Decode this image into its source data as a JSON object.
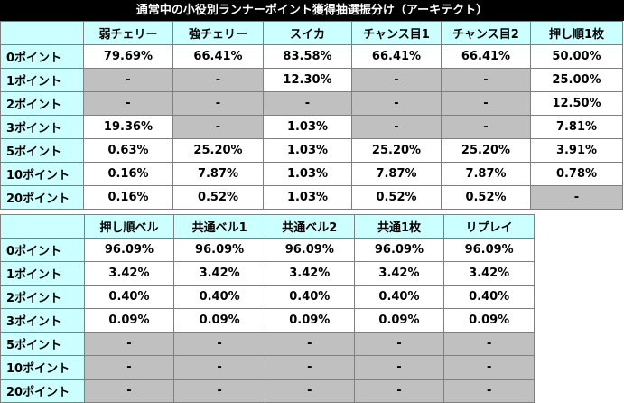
{
  "title": "通常中の小役別ランナーポイント獲得抽選振分け（アーキテクト）",
  "colors": {
    "header_bg": "#ccffff",
    "na_cell": "#c0c0c0",
    "title_bg": "#000000"
  },
  "table1": {
    "headers": [
      "弱チェリー",
      "強チェリー",
      "スイカ",
      "チャンス目1",
      "チャンス目2",
      "押し順1枚"
    ],
    "rows": [
      {
        "label": "0ポイント",
        "cells": [
          "79.69%",
          "66.41%",
          "83.58%",
          "66.41%",
          "66.41%",
          "50.00%"
        ]
      },
      {
        "label": "1ポイント",
        "cells": [
          "-",
          "-",
          "12.30%",
          "-",
          "-",
          "25.00%"
        ]
      },
      {
        "label": "2ポイント",
        "cells": [
          "-",
          "-",
          "-",
          "-",
          "-",
          "12.50%"
        ]
      },
      {
        "label": "3ポイント",
        "cells": [
          "19.36%",
          "-",
          "1.03%",
          "-",
          "-",
          "7.81%"
        ]
      },
      {
        "label": "5ポイント",
        "cells": [
          "0.63%",
          "25.20%",
          "1.03%",
          "25.20%",
          "25.20%",
          "3.91%"
        ]
      },
      {
        "label": "10ポイント",
        "cells": [
          "0.16%",
          "7.87%",
          "1.03%",
          "7.87%",
          "7.87%",
          "0.78%"
        ]
      },
      {
        "label": "20ポイント",
        "cells": [
          "0.16%",
          "0.52%",
          "1.03%",
          "0.52%",
          "0.52%",
          "-"
        ]
      }
    ]
  },
  "table2": {
    "headers": [
      "押し順ベル",
      "共通ベル1",
      "共通ベル2",
      "共通1枚",
      "リプレイ"
    ],
    "rows": [
      {
        "label": "0ポイント",
        "cells": [
          "96.09%",
          "96.09%",
          "96.09%",
          "96.09%",
          "96.09%"
        ]
      },
      {
        "label": "1ポイント",
        "cells": [
          "3.42%",
          "3.42%",
          "3.42%",
          "3.42%",
          "3.42%"
        ]
      },
      {
        "label": "2ポイント",
        "cells": [
          "0.40%",
          "0.40%",
          "0.40%",
          "0.40%",
          "0.40%"
        ]
      },
      {
        "label": "3ポイント",
        "cells": [
          "0.09%",
          "0.09%",
          "0.09%",
          "0.09%",
          "0.09%"
        ]
      },
      {
        "label": "5ポイント",
        "cells": [
          "-",
          "-",
          "-",
          "-",
          "-"
        ]
      },
      {
        "label": "10ポイント",
        "cells": [
          "-",
          "-",
          "-",
          "-",
          "-"
        ]
      },
      {
        "label": "20ポイント",
        "cells": [
          "-",
          "-",
          "-",
          "-",
          "-"
        ]
      }
    ]
  }
}
